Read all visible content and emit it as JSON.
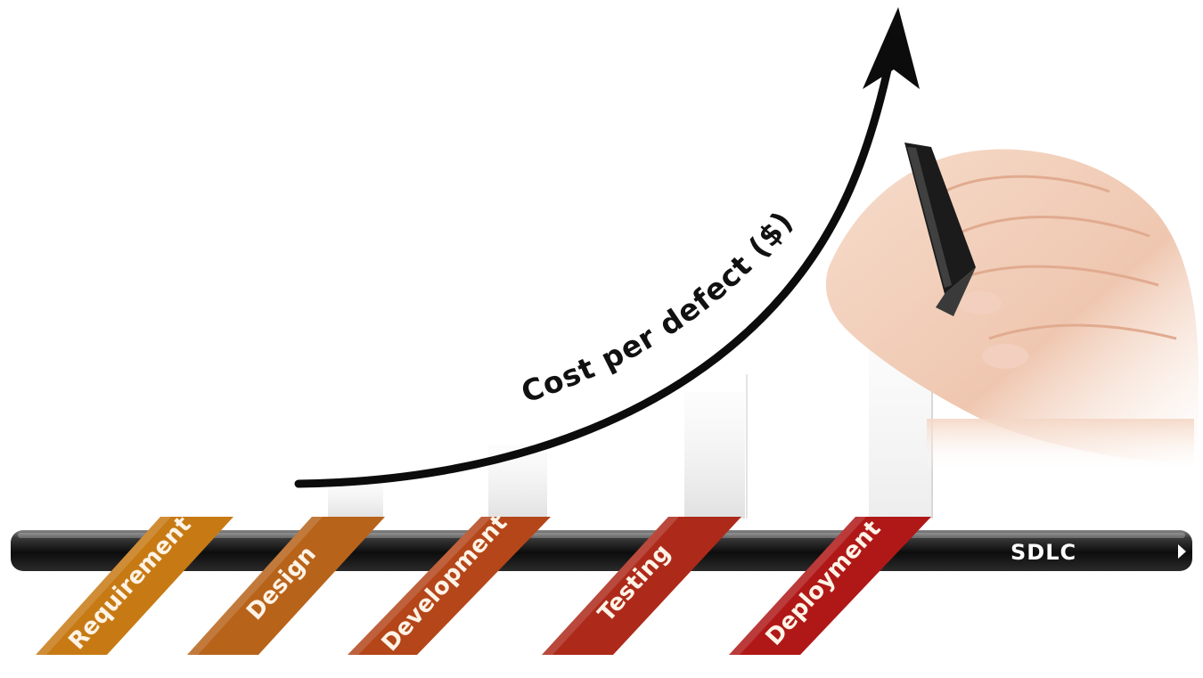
{
  "curve_label": "Cost per defect ($)",
  "timeline_label": "SDLC",
  "phases": [
    {
      "label": "Requirement",
      "color": "#c77a14"
    },
    {
      "label": "Design",
      "color": "#b8631a"
    },
    {
      "label": "Development",
      "color": "#b4461a"
    },
    {
      "label": "Testing",
      "color": "#ad2a1a"
    },
    {
      "label": "Deployment",
      "color": "#b01818"
    }
  ],
  "colors": {
    "bar_dark": "#1a1a1a",
    "arrow": "#0c0c0c"
  }
}
